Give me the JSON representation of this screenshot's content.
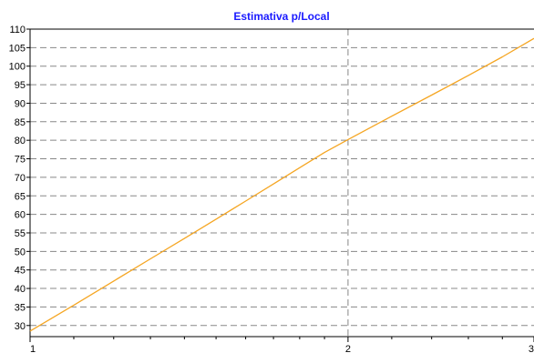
{
  "chart_data": {
    "type": "line",
    "title": "Estimativa p/Local",
    "xlabel": "",
    "ylabel": "",
    "x_scale": "log",
    "xlim": [
      1,
      3
    ],
    "ylim": [
      27,
      110
    ],
    "x_ticks": [
      {
        "value": 1,
        "label": "1"
      },
      {
        "value": 2,
        "label": "2"
      },
      {
        "value": 3,
        "label": "3"
      }
    ],
    "x_minor_ticks": [
      1.1,
      1.2,
      1.3,
      1.4,
      1.5,
      1.6,
      1.7,
      1.8,
      1.9,
      2.2,
      2.4,
      2.6,
      2.8
    ],
    "y_ticks": [
      30,
      35,
      40,
      45,
      50,
      55,
      60,
      65,
      70,
      75,
      80,
      85,
      90,
      95,
      100,
      105,
      110
    ],
    "grid": {
      "x": true,
      "y": true,
      "style": "dashed"
    },
    "legend": "none",
    "colors": {
      "title": "#1a1aff",
      "line": "#f5a623",
      "grid": "#888888",
      "axis": "#000000"
    },
    "series": [
      {
        "x": [
          1.0,
          1.1,
          1.2,
          1.3,
          1.4,
          1.5,
          1.6,
          1.7,
          1.8,
          1.9,
          2.0,
          2.2,
          2.4,
          2.6,
          2.8,
          3.0
        ],
        "y": [
          28.5,
          35.5,
          42.0,
          48.0,
          53.5,
          58.7,
          63.6,
          68.2,
          72.6,
          76.7,
          80.2,
          86.5,
          92.2,
          97.5,
          102.5,
          107.5
        ]
      }
    ]
  }
}
